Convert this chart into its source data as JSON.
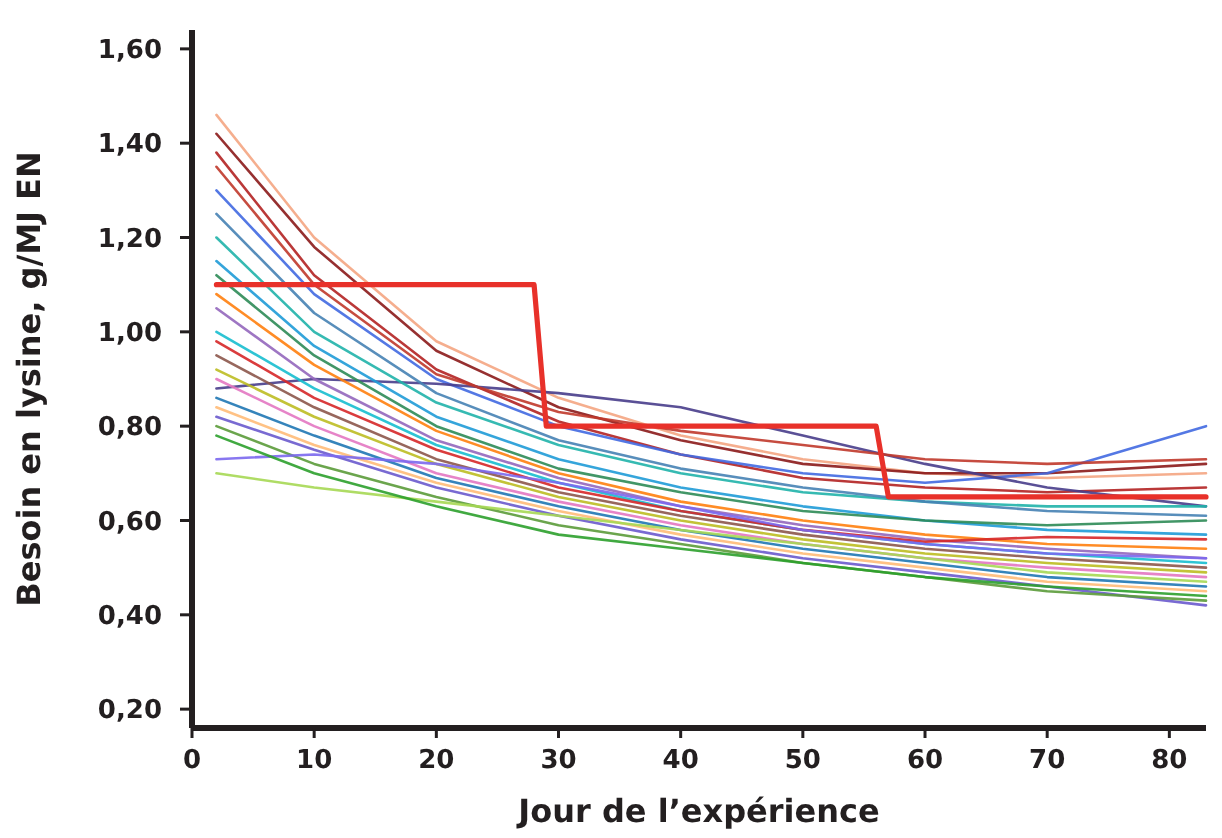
{
  "chart_data": {
    "type": "line",
    "xlabel": "Jour de l’expérience",
    "ylabel": "Besoin en lysine, g/MJ EN",
    "x": [
      2,
      10,
      20,
      30,
      40,
      50,
      60,
      70,
      83
    ],
    "xlim": [
      0,
      83
    ],
    "xticks": [
      0,
      10,
      20,
      30,
      40,
      50,
      60,
      70,
      80
    ],
    "ylim": [
      0.16,
      1.64
    ],
    "yticks": [
      {
        "value": 0.2,
        "label": "0,20"
      },
      {
        "value": 0.4,
        "label": "0,40"
      },
      {
        "value": 0.6,
        "label": "0,60"
      },
      {
        "value": 0.8,
        "label": "0,80"
      },
      {
        "value": 1.0,
        "label": "1,00"
      },
      {
        "value": 1.2,
        "label": "1,20"
      },
      {
        "value": 1.4,
        "label": "1,40"
      },
      {
        "value": 1.6,
        "label": "1,60"
      }
    ],
    "grid": false,
    "marker": "none",
    "line_style": "solid",
    "series": [
      {
        "color": "#f4a582",
        "values": [
          1.46,
          1.2,
          0.98,
          0.86,
          0.78,
          0.73,
          0.7,
          0.69,
          0.7
        ]
      },
      {
        "color": "#8b1a1a",
        "values": [
          1.42,
          1.18,
          0.96,
          0.84,
          0.77,
          0.72,
          0.7,
          0.7,
          0.72
        ]
      },
      {
        "color": "#b22222",
        "values": [
          1.38,
          1.12,
          0.92,
          0.81,
          0.74,
          0.69,
          0.67,
          0.66,
          0.67
        ]
      },
      {
        "color": "#4169e1",
        "values": [
          1.3,
          1.08,
          0.9,
          0.8,
          0.74,
          0.7,
          0.68,
          0.7,
          0.8
        ]
      },
      {
        "color": "#483d8b",
        "values": [
          0.88,
          0.9,
          0.89,
          0.87,
          0.84,
          0.78,
          0.72,
          0.67,
          0.63
        ]
      },
      {
        "color": "#20b2aa",
        "values": [
          1.2,
          1.0,
          0.85,
          0.76,
          0.7,
          0.66,
          0.64,
          0.63,
          0.63
        ]
      },
      {
        "color": "#1f9bd7",
        "values": [
          1.15,
          0.97,
          0.82,
          0.73,
          0.67,
          0.63,
          0.6,
          0.58,
          0.57
        ]
      },
      {
        "color": "#2e8b57",
        "values": [
          1.12,
          0.95,
          0.8,
          0.71,
          0.66,
          0.62,
          0.6,
          0.59,
          0.6
        ]
      },
      {
        "color": "#ff7f0e",
        "values": [
          1.08,
          0.93,
          0.79,
          0.7,
          0.64,
          0.6,
          0.57,
          0.55,
          0.54
        ]
      },
      {
        "color": "#9467bd",
        "values": [
          1.05,
          0.9,
          0.77,
          0.69,
          0.63,
          0.59,
          0.56,
          0.54,
          0.52
        ]
      },
      {
        "color": "#17becf",
        "values": [
          1.0,
          0.88,
          0.76,
          0.68,
          0.62,
          0.58,
          0.55,
          0.53,
          0.51
        ]
      },
      {
        "color": "#d62728",
        "values": [
          0.98,
          0.86,
          0.75,
          0.67,
          0.62,
          0.58,
          0.555,
          0.565,
          0.56
        ]
      },
      {
        "color": "#8c564b",
        "values": [
          0.95,
          0.84,
          0.73,
          0.66,
          0.61,
          0.57,
          0.54,
          0.52,
          0.5
        ]
      },
      {
        "color": "#bcbd22",
        "values": [
          0.92,
          0.82,
          0.72,
          0.65,
          0.6,
          0.56,
          0.53,
          0.51,
          0.49
        ]
      },
      {
        "color": "#e377c2",
        "values": [
          0.9,
          0.8,
          0.7,
          0.64,
          0.59,
          0.55,
          0.52,
          0.5,
          0.48
        ]
      },
      {
        "color": "#1f77b4",
        "values": [
          0.86,
          0.78,
          0.69,
          0.63,
          0.58,
          0.54,
          0.51,
          0.48,
          0.46
        ]
      },
      {
        "color": "#ffbb78",
        "values": [
          0.84,
          0.76,
          0.68,
          0.62,
          0.57,
          0.53,
          0.5,
          0.47,
          0.45
        ]
      },
      {
        "color": "#6a5acd",
        "values": [
          0.82,
          0.75,
          0.67,
          0.61,
          0.56,
          0.52,
          0.49,
          0.46,
          0.42
        ]
      },
      {
        "color": "#5b9b3a",
        "values": [
          0.8,
          0.72,
          0.65,
          0.59,
          0.55,
          0.51,
          0.48,
          0.45,
          0.43
        ]
      },
      {
        "color": "#7b68ee",
        "values": [
          0.73,
          0.74,
          0.72,
          0.68,
          0.63,
          0.58,
          0.55,
          0.53,
          0.52
        ]
      },
      {
        "color": "#a6d854",
        "values": [
          0.7,
          0.67,
          0.64,
          0.61,
          0.58,
          0.55,
          0.52,
          0.49,
          0.47
        ]
      },
      {
        "color": "#2ca02c",
        "values": [
          0.78,
          0.7,
          0.63,
          0.57,
          0.54,
          0.51,
          0.48,
          0.46,
          0.44
        ]
      },
      {
        "color": "#c0392b",
        "values": [
          1.35,
          1.1,
          0.91,
          0.83,
          0.79,
          0.76,
          0.73,
          0.72,
          0.73
        ]
      },
      {
        "color": "#4682b4",
        "values": [
          1.25,
          1.04,
          0.87,
          0.77,
          0.71,
          0.67,
          0.64,
          0.62,
          0.61
        ]
      },
      {
        "color": "#e8312a",
        "x": [
          2,
          28,
          29,
          56,
          57,
          83
        ],
        "values": [
          1.1,
          1.1,
          0.8,
          0.8,
          0.65,
          0.65
        ]
      }
    ]
  }
}
